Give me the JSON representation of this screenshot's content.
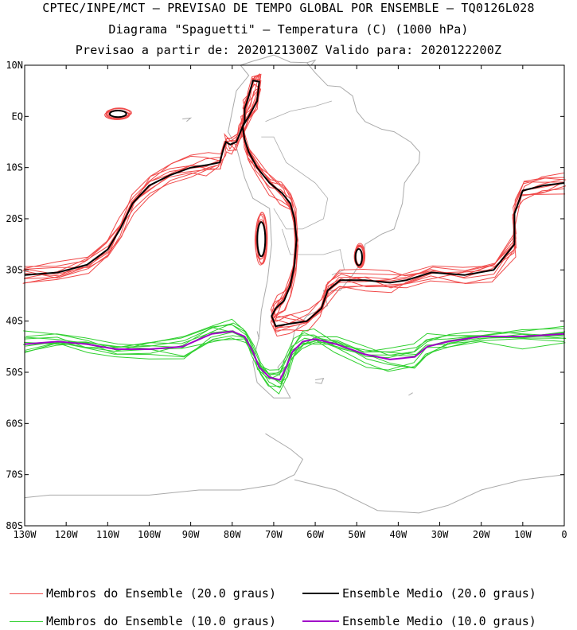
{
  "header": {
    "line1": "CPTEC/INPE/MCT — PREVISAO DE TEMPO GLOBAL POR ENSEMBLE — TQ0126L028",
    "line2": "Diagrama \"Spaguetti\" — Temperatura (C) (1000 hPa)",
    "line3": "Previsao a partir de: 2020121300Z  Valido para: 2020122200Z"
  },
  "chart_data": {
    "type": "line",
    "title": "Diagrama \"Spaguetti\" — Temperatura (C) (1000 hPa)",
    "xlim": [
      -130,
      0
    ],
    "ylim": [
      -80,
      10
    ],
    "x_ticks": [
      {
        "value": -130,
        "label": "130W"
      },
      {
        "value": -120,
        "label": "120W"
      },
      {
        "value": -110,
        "label": "110W"
      },
      {
        "value": -100,
        "label": "100W"
      },
      {
        "value": -90,
        "label": "90W"
      },
      {
        "value": -80,
        "label": "80W"
      },
      {
        "value": -70,
        "label": "70W"
      },
      {
        "value": -60,
        "label": "60W"
      },
      {
        "value": -50,
        "label": "50W"
      },
      {
        "value": -40,
        "label": "40W"
      },
      {
        "value": -30,
        "label": "30W"
      },
      {
        "value": -20,
        "label": "20W"
      },
      {
        "value": -10,
        "label": "10W"
      },
      {
        "value": 0,
        "label": "0"
      }
    ],
    "y_ticks": [
      {
        "value": 10,
        "label": "10N"
      },
      {
        "value": 0,
        "label": "EQ"
      },
      {
        "value": -10,
        "label": "10S"
      },
      {
        "value": -20,
        "label": "20S"
      },
      {
        "value": -30,
        "label": "30S"
      },
      {
        "value": -40,
        "label": "40S"
      },
      {
        "value": -50,
        "label": "50S"
      },
      {
        "value": -60,
        "label": "60S"
      },
      {
        "value": -70,
        "label": "70S"
      },
      {
        "value": -80,
        "label": "80S"
      }
    ],
    "series": [
      {
        "name": "Ensemble Medio (20.0 graus)",
        "color": "#000000",
        "points": [
          [
            -130,
            -31
          ],
          [
            -122,
            -30.5
          ],
          [
            -115,
            -29
          ],
          [
            -110,
            -26
          ],
          [
            -107,
            -22
          ],
          [
            -104,
            -17
          ],
          [
            -100,
            -13.5
          ],
          [
            -95,
            -11.5
          ],
          [
            -90,
            -10
          ],
          [
            -86,
            -9.5
          ],
          [
            -83,
            -9
          ],
          [
            -82,
            -6
          ],
          [
            -81.5,
            -5
          ],
          [
            -80.5,
            -5.5
          ],
          [
            -79,
            -5
          ],
          [
            -78,
            -3
          ],
          [
            -77,
            -1
          ],
          [
            -77,
            1.5
          ],
          [
            -76,
            4
          ],
          [
            -75,
            7
          ],
          [
            -73.5,
            6.8
          ],
          [
            -74,
            3
          ],
          [
            -76,
            0
          ],
          [
            -77.5,
            -2
          ],
          [
            -77,
            -4.5
          ],
          [
            -76,
            -7
          ],
          [
            -74,
            -10
          ],
          [
            -71,
            -13
          ],
          [
            -68,
            -15
          ],
          [
            -66,
            -17
          ],
          [
            -65,
            -20
          ],
          [
            -64.5,
            -24
          ],
          [
            -65,
            -29
          ],
          [
            -66,
            -33
          ],
          [
            -67.5,
            -36
          ],
          [
            -69.5,
            -37.5
          ],
          [
            -70.5,
            -39
          ],
          [
            -69.5,
            -41
          ],
          [
            -66,
            -40.5
          ],
          [
            -62,
            -40
          ],
          [
            -58.5,
            -37.5
          ],
          [
            -57,
            -34
          ],
          [
            -54,
            -32
          ],
          [
            -48,
            -32
          ],
          [
            -42,
            -32.5
          ],
          [
            -38,
            -32
          ],
          [
            -32,
            -30.5
          ],
          [
            -24,
            -31
          ],
          [
            -17,
            -30
          ],
          [
            -12,
            -25
          ],
          [
            -12,
            -19
          ],
          [
            -10,
            -14.5
          ],
          [
            -5,
            -13.5
          ],
          [
            0,
            -13
          ]
        ]
      },
      {
        "name": "Ensemble Medio (10.0 graus)",
        "color": "#a000c8",
        "points": [
          [
            -130,
            -44.5
          ],
          [
            -122,
            -44
          ],
          [
            -115,
            -44.5
          ],
          [
            -108,
            -45.5
          ],
          [
            -100,
            -45.5
          ],
          [
            -92,
            -45
          ],
          [
            -85,
            -42.5
          ],
          [
            -80,
            -42
          ],
          [
            -77,
            -43
          ],
          [
            -75,
            -46
          ],
          [
            -73.5,
            -49
          ],
          [
            -71,
            -51
          ],
          [
            -68.5,
            -51.5
          ],
          [
            -67,
            -49
          ],
          [
            -65.5,
            -46
          ],
          [
            -63,
            -44
          ],
          [
            -60,
            -43.5
          ],
          [
            -55,
            -44.5
          ],
          [
            -48,
            -46.5
          ],
          [
            -42,
            -47.5
          ],
          [
            -36,
            -47
          ],
          [
            -33,
            -45
          ],
          [
            -28,
            -44
          ],
          [
            -20,
            -43
          ],
          [
            -10,
            -43
          ],
          [
            0,
            -42.5
          ]
        ]
      }
    ],
    "ensemble_members": [
      {
        "name": "Membros do Ensemble (20.0 graus)",
        "color": "#f04a4a",
        "count": 10
      },
      {
        "name": "Membros do Ensemble (10.0 graus)",
        "color": "#30d030",
        "count": 10
      }
    ],
    "closed_contours": [
      {
        "label": "20.0 graus",
        "center": [
          -107.5,
          0.5
        ],
        "radius": [
          2.5,
          0.8
        ]
      },
      {
        "label": "20.0 graus",
        "center": [
          -73,
          -24
        ],
        "radius": [
          1.2,
          4.2
        ]
      },
      {
        "label": "20.0 graus",
        "center": [
          -49.5,
          -27.5
        ],
        "radius": [
          1,
          2
        ]
      }
    ]
  },
  "legend": {
    "items": [
      {
        "label": "Membros do Ensemble (20.0 graus)",
        "color": "#f04a4a"
      },
      {
        "label": "Ensemble Medio (20.0 graus)",
        "color": "#000000"
      },
      {
        "label": "Membros do Ensemble (10.0 graus)",
        "color": "#30d030"
      },
      {
        "label": "Ensemble Medio (10.0 graus)",
        "color": "#a000c8"
      }
    ]
  }
}
